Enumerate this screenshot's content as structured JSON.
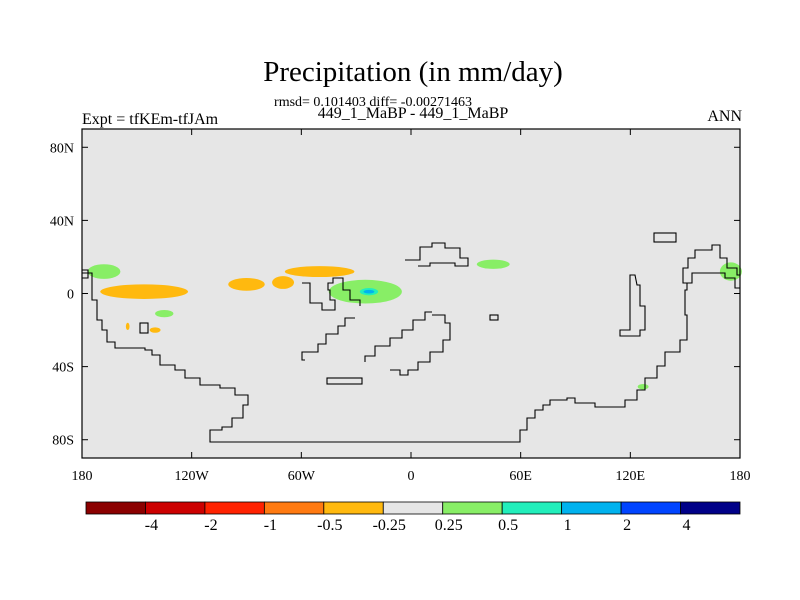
{
  "chart_data": {
    "type": "heatmap",
    "title": "Precipitation (in mm/day)",
    "subtitle_stats": "rmsd= 0.101403 diff= -0.00271463",
    "subtitle_cases": "449_1_MaBP - 449_1_MaBP",
    "left_label": "Expt = tfKEm-tfJAm",
    "right_label": "ANN",
    "projection": "cylindrical-equidistant",
    "xlim": [
      -180,
      180
    ],
    "ylim": [
      -90,
      90
    ],
    "x_ticks": [
      {
        "value": -180,
        "label": "180"
      },
      {
        "value": -120,
        "label": "120W"
      },
      {
        "value": -60,
        "label": "60W"
      },
      {
        "value": 0,
        "label": "0"
      },
      {
        "value": 60,
        "label": "60E"
      },
      {
        "value": 120,
        "label": "120E"
      },
      {
        "value": 180,
        "label": "180"
      }
    ],
    "y_ticks": [
      {
        "value": 80,
        "label": "80N"
      },
      {
        "value": 40,
        "label": "40N"
      },
      {
        "value": 0,
        "label": "0"
      },
      {
        "value": -40,
        "label": "40S"
      },
      {
        "value": -80,
        "label": "80S"
      }
    ],
    "colorbar": {
      "colors": [
        "#8b0000",
        "#cc0000",
        "#ff2200",
        "#ff7a11",
        "#ffb90f",
        "#e6e6e6",
        "#88ee66",
        "#22eebb",
        "#00b2ee",
        "#0044ff",
        "#000088"
      ],
      "labels": [
        "-4",
        "-2",
        "-1",
        "-0.5",
        "-0.25",
        "0.25",
        "0.5",
        "1",
        "2",
        "4"
      ]
    },
    "background_color": "#e6e6e6",
    "anomaly_regions": [
      {
        "category": "-0.25",
        "color": "#ffb90f",
        "lon": -146,
        "lat": 1,
        "lon_width": 48,
        "lat_height": 8
      },
      {
        "category": "-0.25",
        "color": "#ffb90f",
        "lon": -90,
        "lat": 5,
        "lon_width": 20,
        "lat_height": 7
      },
      {
        "category": "-0.25",
        "color": "#ffb90f",
        "lon": -50,
        "lat": 12,
        "lon_width": 38,
        "lat_height": 6
      },
      {
        "category": "-0.25",
        "color": "#ffb90f",
        "lon": -70,
        "lat": 6,
        "lon_width": 12,
        "lat_height": 7
      },
      {
        "category": "-0.25",
        "color": "#ffb90f",
        "lon": -140,
        "lat": -20,
        "lon_width": 6,
        "lat_height": 3
      },
      {
        "category": "-0.25",
        "color": "#ffb90f",
        "lon": -155,
        "lat": -18,
        "lon_width": 2,
        "lat_height": 4
      },
      {
        "category": "0.25",
        "color": "#88ee66",
        "lon": -168,
        "lat": 12,
        "lon_width": 18,
        "lat_height": 8
      },
      {
        "category": "0.25",
        "color": "#88ee66",
        "lon": -135,
        "lat": -11,
        "lon_width": 10,
        "lat_height": 4
      },
      {
        "category": "0.25",
        "color": "#88ee66",
        "lon": -25,
        "lat": 1,
        "lon_width": 40,
        "lat_height": 13
      },
      {
        "category": "0.25",
        "color": "#88ee66",
        "lon": 45,
        "lat": 16,
        "lon_width": 18,
        "lat_height": 5
      },
      {
        "category": "0.25",
        "color": "#88ee66",
        "lon": 175,
        "lat": 12,
        "lon_width": 12,
        "lat_height": 10
      },
      {
        "category": "0.25",
        "color": "#88ee66",
        "lon": 127,
        "lat": -51,
        "lon_width": 6,
        "lat_height": 3
      },
      {
        "category": "0.5",
        "color": "#22eebb",
        "lon": -23,
        "lat": 1,
        "lon_width": 10,
        "lat_height": 4
      },
      {
        "category": "1",
        "color": "#00b2ee",
        "lon": -23,
        "lat": 1,
        "lon_width": 6,
        "lat_height": 2
      }
    ]
  }
}
